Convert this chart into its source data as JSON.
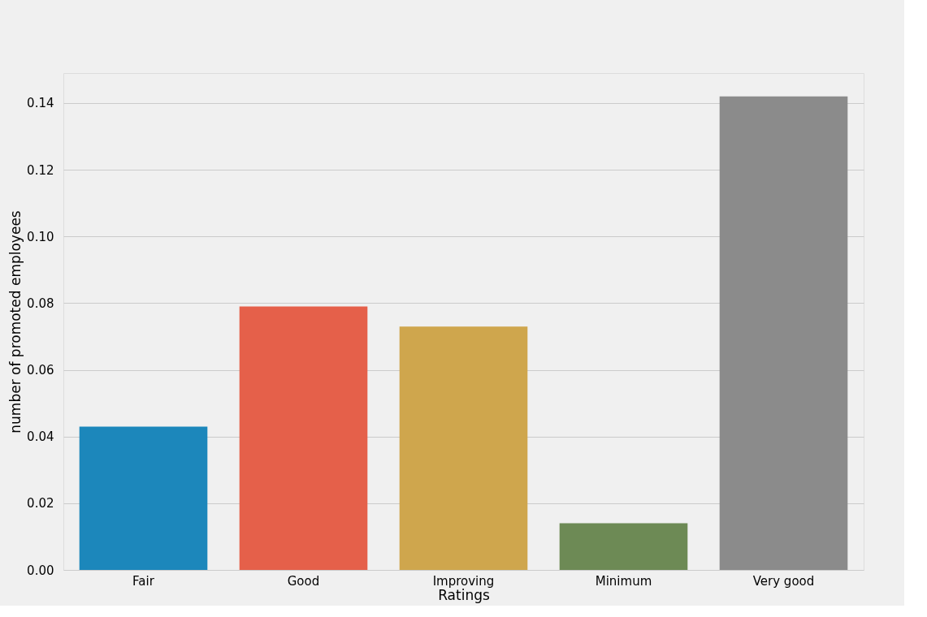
{
  "chart_data": {
    "type": "bar",
    "xlabel": "Ratings",
    "ylabel": "number of promoted employees",
    "categories": [
      "Fair",
      "Good",
      "Improving",
      "Minimum",
      "Very good"
    ],
    "values": [
      0.043,
      0.079,
      0.073,
      0.014,
      0.142
    ],
    "colors": [
      "#1c87bb",
      "#e5604a",
      "#cfa64d",
      "#6d8a55",
      "#8b8b8b"
    ],
    "ylim": [
      0,
      0.149
    ],
    "yticks": [
      {
        "value": 0,
        "label": "0.00"
      },
      {
        "value": 0.02,
        "label": "0.02"
      },
      {
        "value": 0.04,
        "label": "0.04"
      },
      {
        "value": 0.06,
        "label": "0.06"
      },
      {
        "value": 0.08,
        "label": "0.08"
      },
      {
        "value": 0.1,
        "label": "0.10"
      },
      {
        "value": 0.12,
        "label": "0.12"
      },
      {
        "value": 0.14,
        "label": "0.14"
      }
    ],
    "grid": "y",
    "legend": false
  }
}
